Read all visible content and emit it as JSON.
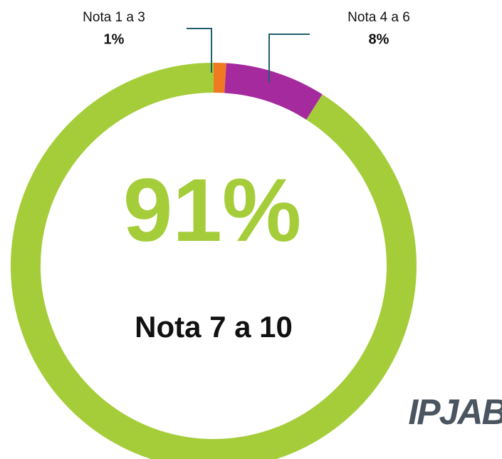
{
  "chart_data": {
    "type": "donut",
    "categories": [
      "Nota 1 a 3",
      "Nota 4 a 6",
      "Nota 7 a 10"
    ],
    "values": [
      1,
      8,
      91
    ],
    "value_labels": [
      "1%",
      "8%",
      "91%"
    ],
    "colors": [
      "#f07a22",
      "#a52a9e",
      "#a5cd3a"
    ]
  },
  "logo": "IPJAB"
}
